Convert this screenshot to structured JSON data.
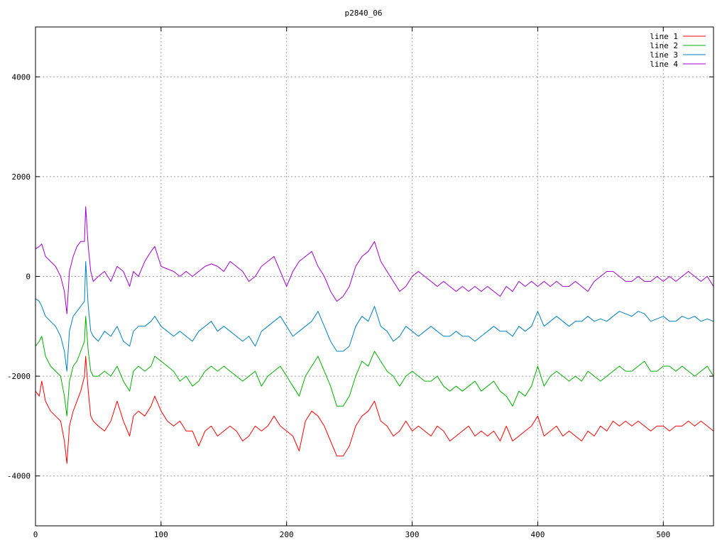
{
  "chart_data": {
    "type": "line",
    "title": "p2840_06",
    "xlabel": "",
    "ylabel": "",
    "xlim": [
      0,
      540
    ],
    "ylim": [
      -5000,
      5000
    ],
    "x_ticks": [
      0,
      100,
      200,
      300,
      400,
      500
    ],
    "y_ticks": [
      -4000,
      -2000,
      0,
      2000,
      4000
    ],
    "x_tick_labels": [
      "0",
      "100",
      "200",
      "300",
      "400",
      "500"
    ],
    "y_tick_labels": [
      "-4000",
      "-2000",
      "0",
      "2000",
      "4000"
    ],
    "grid": true,
    "legend_position": "top-right",
    "series": [
      {
        "name": "line 1",
        "color": "#ff0000",
        "x": [
          0,
          3,
          5,
          8,
          12,
          16,
          20,
          23,
          25,
          27,
          30,
          33,
          36,
          39,
          40,
          42,
          44,
          46,
          50,
          55,
          60,
          65,
          70,
          75,
          78,
          82,
          87,
          92,
          95,
          100,
          105,
          110,
          115,
          120,
          125,
          130,
          135,
          140,
          145,
          150,
          155,
          160,
          165,
          170,
          175,
          180,
          185,
          190,
          195,
          200,
          205,
          210,
          215,
          220,
          225,
          230,
          235,
          240,
          245,
          250,
          255,
          260,
          265,
          270,
          275,
          280,
          285,
          290,
          295,
          300,
          305,
          310,
          315,
          320,
          325,
          330,
          335,
          340,
          345,
          350,
          355,
          360,
          365,
          370,
          375,
          380,
          385,
          390,
          395,
          400,
          405,
          410,
          415,
          420,
          425,
          430,
          435,
          440,
          445,
          450,
          455,
          460,
          465,
          470,
          475,
          480,
          485,
          490,
          495,
          500,
          505,
          510,
          515,
          520,
          525,
          530,
          535,
          540
        ],
        "values": [
          -2300,
          -2400,
          -2100,
          -2500,
          -2700,
          -2800,
          -2900,
          -3300,
          -3750,
          -3000,
          -2700,
          -2500,
          -2300,
          -2000,
          -1600,
          -2300,
          -2800,
          -2900,
          -3000,
          -3100,
          -2900,
          -2500,
          -2900,
          -3200,
          -2800,
          -2700,
          -2800,
          -2600,
          -2400,
          -2700,
          -2900,
          -3000,
          -2900,
          -3100,
          -3100,
          -3400,
          -3100,
          -3000,
          -3200,
          -3100,
          -3000,
          -3100,
          -3300,
          -3200,
          -3000,
          -3100,
          -3000,
          -2800,
          -3000,
          -3100,
          -3200,
          -3500,
          -2900,
          -2700,
          -2800,
          -3000,
          -3300,
          -3600,
          -3600,
          -3400,
          -3000,
          -2800,
          -2700,
          -2500,
          -2900,
          -3000,
          -3200,
          -3100,
          -2900,
          -3100,
          -3000,
          -3100,
          -3200,
          -3000,
          -3100,
          -3300,
          -3200,
          -3100,
          -3000,
          -3200,
          -3100,
          -3200,
          -3100,
          -3300,
          -3000,
          -3300,
          -3200,
          -3100,
          -3000,
          -2800,
          -3200,
          -3100,
          -3000,
          -3200,
          -3100,
          -3200,
          -3300,
          -3100,
          -3200,
          -3000,
          -3100,
          -2900,
          -3000,
          -2900,
          -3000,
          -2900,
          -3000,
          -3100,
          -3000,
          -3000,
          -3100,
          -3000,
          -3000,
          -2900,
          -3000,
          -2900,
          -3000,
          -3100
        ]
      },
      {
        "name": "line 2",
        "color": "#00b000",
        "x": [
          0,
          3,
          5,
          8,
          12,
          16,
          20,
          23,
          25,
          27,
          30,
          33,
          36,
          39,
          40,
          42,
          44,
          46,
          50,
          55,
          60,
          65,
          70,
          75,
          78,
          82,
          87,
          92,
          95,
          100,
          105,
          110,
          115,
          120,
          125,
          130,
          135,
          140,
          145,
          150,
          155,
          160,
          165,
          170,
          175,
          180,
          185,
          190,
          195,
          200,
          205,
          210,
          215,
          220,
          225,
          230,
          235,
          240,
          245,
          250,
          255,
          260,
          265,
          270,
          275,
          280,
          285,
          290,
          295,
          300,
          305,
          310,
          315,
          320,
          325,
          330,
          335,
          340,
          345,
          350,
          355,
          360,
          365,
          370,
          375,
          380,
          385,
          390,
          395,
          400,
          405,
          410,
          415,
          420,
          425,
          430,
          435,
          440,
          445,
          450,
          455,
          460,
          465,
          470,
          475,
          480,
          485,
          490,
          495,
          500,
          505,
          510,
          515,
          520,
          525,
          530,
          535,
          540
        ],
        "values": [
          -1400,
          -1300,
          -1200,
          -1600,
          -1800,
          -1900,
          -2000,
          -2400,
          -2800,
          -2100,
          -1800,
          -1700,
          -1500,
          -1300,
          -800,
          -1500,
          -1900,
          -2000,
          -2000,
          -1900,
          -2000,
          -1800,
          -2100,
          -2300,
          -1900,
          -1800,
          -1900,
          -1800,
          -1600,
          -1700,
          -1800,
          -1900,
          -2100,
          -2000,
          -2200,
          -2100,
          -1900,
          -1800,
          -1900,
          -1800,
          -1900,
          -2000,
          -2100,
          -2000,
          -1900,
          -2200,
          -2000,
          -1900,
          -1800,
          -2000,
          -2200,
          -2400,
          -2000,
          -1800,
          -1600,
          -1900,
          -2200,
          -2600,
          -2600,
          -2400,
          -2000,
          -1700,
          -1800,
          -1500,
          -1700,
          -1900,
          -2000,
          -2200,
          -2000,
          -1900,
          -2000,
          -2100,
          -2100,
          -2000,
          -2200,
          -2300,
          -2200,
          -2300,
          -2200,
          -2100,
          -2300,
          -2200,
          -2100,
          -2300,
          -2400,
          -2600,
          -2300,
          -2400,
          -2200,
          -1800,
          -2200,
          -2000,
          -1900,
          -2000,
          -2100,
          -2000,
          -2100,
          -1900,
          -2000,
          -2100,
          -2000,
          -1900,
          -1800,
          -1900,
          -1900,
          -1800,
          -1700,
          -1900,
          -1900,
          -1800,
          -1800,
          -1900,
          -1800,
          -1900,
          -2000,
          -1900,
          -1800,
          -2000
        ]
      },
      {
        "name": "line 3",
        "color": "#0080c0",
        "x": [
          0,
          3,
          5,
          8,
          12,
          16,
          20,
          23,
          25,
          27,
          30,
          33,
          36,
          39,
          40,
          42,
          44,
          46,
          50,
          55,
          60,
          65,
          70,
          75,
          78,
          82,
          87,
          92,
          95,
          100,
          105,
          110,
          115,
          120,
          125,
          130,
          135,
          140,
          145,
          150,
          155,
          160,
          165,
          170,
          175,
          180,
          185,
          190,
          195,
          200,
          205,
          210,
          215,
          220,
          225,
          230,
          235,
          240,
          245,
          250,
          255,
          260,
          265,
          270,
          275,
          280,
          285,
          290,
          295,
          300,
          305,
          310,
          315,
          320,
          325,
          330,
          335,
          340,
          345,
          350,
          355,
          360,
          365,
          370,
          375,
          380,
          385,
          390,
          395,
          400,
          405,
          410,
          415,
          420,
          425,
          430,
          435,
          440,
          445,
          450,
          455,
          460,
          465,
          470,
          475,
          480,
          485,
          490,
          495,
          500,
          505,
          510,
          515,
          520,
          525,
          530,
          535,
          540
        ],
        "values": [
          -450,
          -500,
          -600,
          -800,
          -900,
          -1000,
          -1200,
          -1500,
          -1900,
          -1100,
          -800,
          -700,
          -600,
          -500,
          300,
          -600,
          -1100,
          -1200,
          -1300,
          -1100,
          -1200,
          -1000,
          -1300,
          -1400,
          -1100,
          -1000,
          -1000,
          -900,
          -800,
          -1000,
          -1100,
          -1200,
          -1100,
          -1200,
          -1300,
          -1100,
          -1000,
          -900,
          -1100,
          -1000,
          -1100,
          -1200,
          -1300,
          -1200,
          -1400,
          -1100,
          -1000,
          -900,
          -800,
          -1000,
          -1200,
          -1100,
          -1000,
          -900,
          -700,
          -1000,
          -1300,
          -1500,
          -1500,
          -1400,
          -1000,
          -800,
          -900,
          -600,
          -1000,
          -1100,
          -1300,
          -1200,
          -1000,
          -1100,
          -1200,
          -1100,
          -1000,
          -1100,
          -1200,
          -1200,
          -1100,
          -1200,
          -1200,
          -1300,
          -1200,
          -1100,
          -1000,
          -1100,
          -1100,
          -1200,
          -1000,
          -1100,
          -1000,
          -700,
          -1000,
          -900,
          -800,
          -900,
          -1000,
          -900,
          -900,
          -800,
          -900,
          -850,
          -900,
          -800,
          -700,
          -750,
          -800,
          -700,
          -750,
          -900,
          -850,
          -800,
          -900,
          -900,
          -800,
          -850,
          -800,
          -900,
          -850,
          -900
        ]
      },
      {
        "name": "line 4",
        "color": "#a000d0",
        "x": [
          0,
          3,
          5,
          8,
          12,
          16,
          20,
          23,
          25,
          27,
          30,
          33,
          36,
          39,
          40,
          42,
          44,
          46,
          50,
          55,
          60,
          65,
          70,
          75,
          78,
          82,
          87,
          92,
          95,
          100,
          105,
          110,
          115,
          120,
          125,
          130,
          135,
          140,
          145,
          150,
          155,
          160,
          165,
          170,
          175,
          180,
          185,
          190,
          195,
          200,
          205,
          210,
          215,
          220,
          225,
          230,
          235,
          240,
          245,
          250,
          255,
          260,
          265,
          270,
          275,
          280,
          285,
          290,
          295,
          300,
          305,
          310,
          315,
          320,
          325,
          330,
          335,
          340,
          345,
          350,
          355,
          360,
          365,
          370,
          375,
          380,
          385,
          390,
          395,
          400,
          405,
          410,
          415,
          420,
          425,
          430,
          435,
          440,
          445,
          450,
          455,
          460,
          465,
          470,
          475,
          480,
          485,
          490,
          495,
          500,
          505,
          510,
          515,
          520,
          525,
          530,
          535,
          540
        ],
        "values": [
          550,
          600,
          650,
          400,
          300,
          200,
          0,
          -300,
          -750,
          100,
          400,
          600,
          700,
          700,
          1400,
          600,
          100,
          -100,
          0,
          100,
          -100,
          200,
          100,
          -200,
          100,
          0,
          300,
          500,
          600,
          200,
          150,
          100,
          0,
          100,
          0,
          100,
          200,
          250,
          200,
          100,
          300,
          200,
          100,
          -100,
          0,
          200,
          300,
          400,
          100,
          -200,
          100,
          300,
          400,
          500,
          200,
          0,
          -300,
          -500,
          -400,
          -200,
          200,
          400,
          500,
          700,
          300,
          100,
          -100,
          -300,
          -200,
          0,
          100,
          0,
          -100,
          -200,
          -100,
          -200,
          -300,
          -200,
          -300,
          -200,
          -300,
          -200,
          -300,
          -400,
          -200,
          -300,
          -100,
          -200,
          -100,
          -200,
          -100,
          -200,
          -100,
          -200,
          -200,
          -100,
          -200,
          -300,
          -100,
          0,
          100,
          100,
          0,
          -100,
          -100,
          0,
          -100,
          -100,
          0,
          -100,
          0,
          -100,
          0,
          100,
          0,
          -100,
          0,
          -200
        ]
      }
    ]
  }
}
